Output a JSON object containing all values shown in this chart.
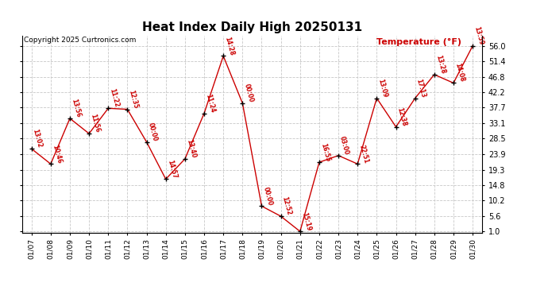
{
  "title": "Heat Index Daily High 20250131",
  "copyright": "Copyright 2025 Curtronics.com",
  "ylabel": "Temperature (°F)",
  "background_color": "#ffffff",
  "grid_color": "#c8c8c8",
  "line_color": "#cc0000",
  "marker_color": "#000000",
  "label_color": "#cc0000",
  "dates": [
    "01/07",
    "01/08",
    "01/09",
    "01/10",
    "01/11",
    "01/12",
    "01/13",
    "01/14",
    "01/15",
    "01/16",
    "01/17",
    "01/18",
    "01/19",
    "01/20",
    "01/21",
    "01/22",
    "01/23",
    "01/24",
    "01/25",
    "01/26",
    "01/27",
    "01/28",
    "01/29",
    "01/30"
  ],
  "values": [
    25.5,
    21.0,
    34.5,
    30.0,
    37.5,
    37.2,
    27.5,
    16.5,
    22.5,
    36.0,
    53.0,
    39.0,
    8.5,
    5.5,
    1.0,
    21.5,
    23.5,
    21.0,
    40.5,
    32.0,
    40.5,
    47.5,
    45.0,
    56.0
  ],
  "time_labels": [
    "13:02",
    "10:46",
    "13:56",
    "11:56",
    "11:22",
    "12:35",
    "00:00",
    "14:57",
    "13:40",
    "11:24",
    "14:28",
    "00:00",
    "00:00",
    "12:52",
    "15:19",
    "16:55",
    "03:00",
    "22:51",
    "13:09",
    "12:38",
    "17:13",
    "13:28",
    "14:08",
    "13:59"
  ],
  "yticks": [
    1.0,
    5.6,
    10.2,
    14.8,
    19.3,
    23.9,
    28.5,
    33.1,
    37.7,
    42.2,
    46.8,
    51.4,
    56.0
  ],
  "ylim_min": 1.0,
  "ylim_max": 56.0
}
